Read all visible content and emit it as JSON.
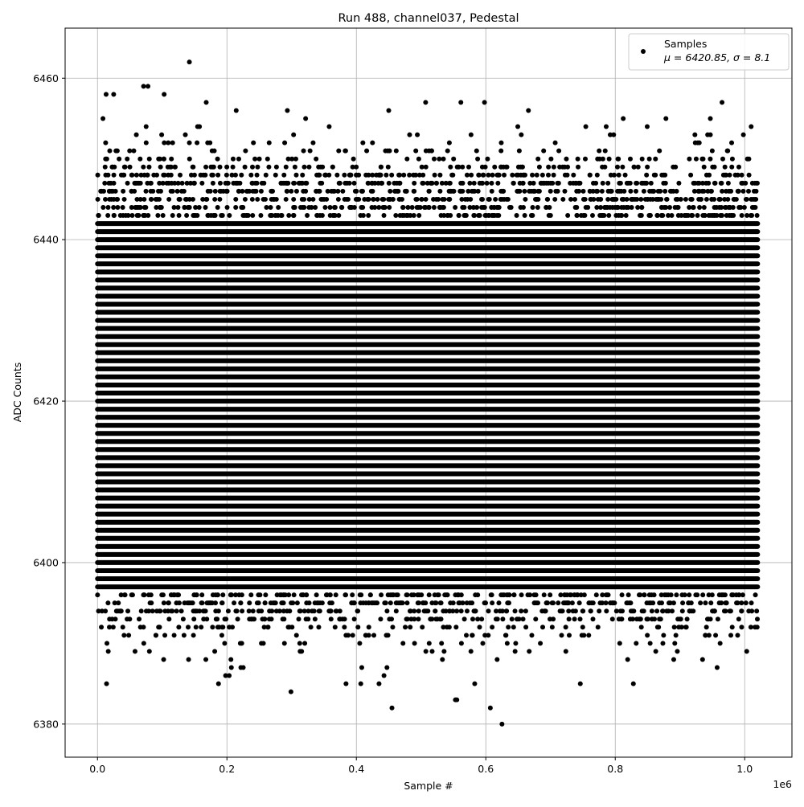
{
  "chart_data": {
    "type": "scatter",
    "title": "Run 488, channel037, Pedestal",
    "xlabel": "Sample #",
    "ylabel": "ADC Counts",
    "x_offset_label": "1e6",
    "xlim": [
      -50000.0,
      1073000.0
    ],
    "ylim": [
      6375.9,
      6466.2
    ],
    "x_ticks": [
      0,
      200000,
      400000,
      600000,
      800000,
      1000000
    ],
    "x_tick_labels": [
      "0.0",
      "0.2",
      "0.4",
      "0.6",
      "0.8",
      "1.0"
    ],
    "y_ticks": [
      6380,
      6400,
      6420,
      6440,
      6460
    ],
    "y_tick_labels": [
      "6380",
      "6400",
      "6420",
      "6440",
      "6460"
    ],
    "grid": true,
    "legend_position": "top-right",
    "series": [
      {
        "name": "Samples",
        "legend_stats": "μ = 6420.85, σ = 8.1",
        "color": "#000000",
        "marker": "circle",
        "x_range": [
          0,
          1020000
        ],
        "values_are_integers": true,
        "mean": 6420.85,
        "sigma": 8.1,
        "dense_y_range": [
          6397,
          6442
        ],
        "outliers": [
          {
            "x": 142000,
            "y": 6462
          },
          {
            "x": 78000,
            "y": 6459
          },
          {
            "x": 25000,
            "y": 6458
          },
          {
            "x": 103000,
            "y": 6458
          },
          {
            "x": 450000,
            "y": 6456
          },
          {
            "x": 965000,
            "y": 6457
          },
          {
            "x": 598000,
            "y": 6457
          },
          {
            "x": 507000,
            "y": 6457
          },
          {
            "x": 455000,
            "y": 6382
          },
          {
            "x": 553000,
            "y": 6383
          },
          {
            "x": 607000,
            "y": 6382
          },
          {
            "x": 625000,
            "y": 6380
          },
          {
            "x": 14000,
            "y": 6385
          },
          {
            "x": 187000,
            "y": 6385
          },
          {
            "x": 384000,
            "y": 6385
          },
          {
            "x": 435000,
            "y": 6385
          },
          {
            "x": 746000,
            "y": 6385
          },
          {
            "x": 828000,
            "y": 6385
          }
        ]
      }
    ]
  }
}
